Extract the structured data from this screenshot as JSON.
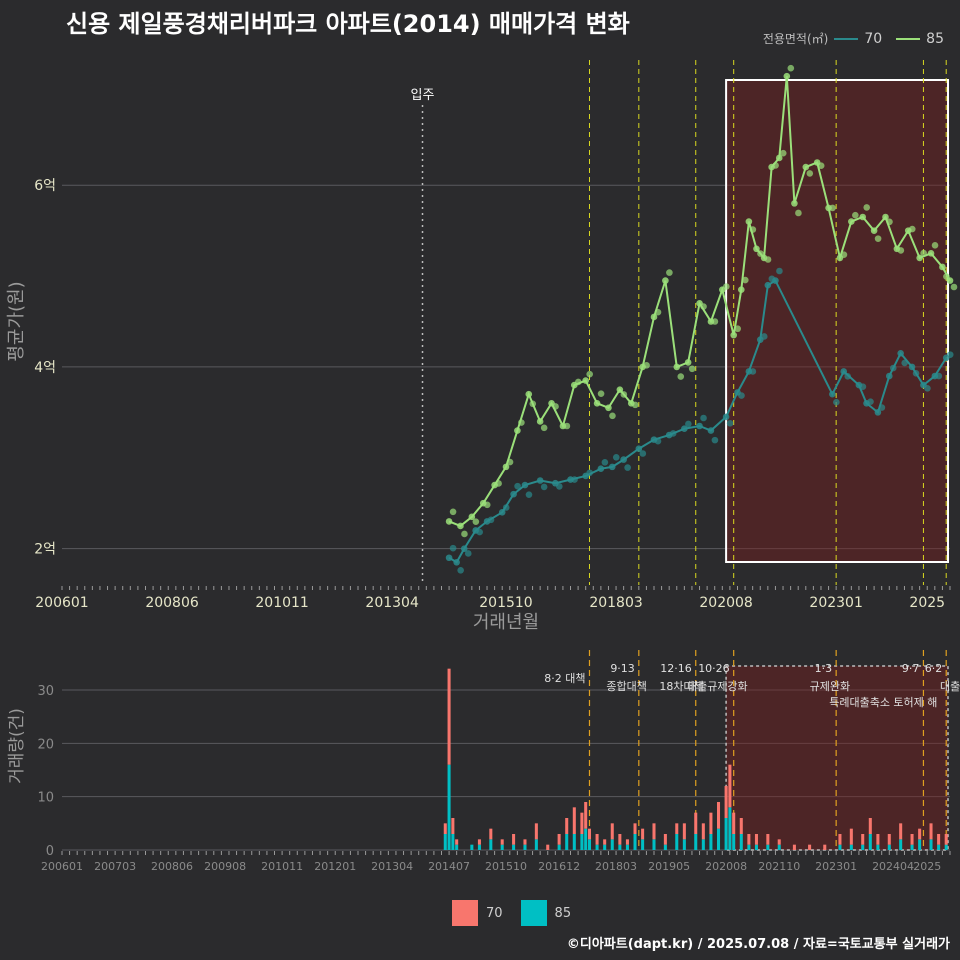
{
  "title": "신용 제일풍경채리버파크 아파트(2014) 매매가격 변화",
  "legend_top": {
    "title": "전용면적(㎡)",
    "items": [
      {
        "label": "70",
        "color": "#2a8a8c"
      },
      {
        "label": "85",
        "color": "#9be07a"
      }
    ]
  },
  "legend_bottom": {
    "items": [
      {
        "label": "70",
        "color": "#f8766d"
      },
      {
        "label": "85",
        "color": "#00bfc4"
      }
    ]
  },
  "footer": "©디아파트(dapt.kr) / 2025.07.08 / 자료=국토교통부 실거래가",
  "chart_data": [
    {
      "type": "line",
      "ylabel": "평균가(원)",
      "xlabel": "거래년월",
      "y_ticks": [
        {
          "value": 2,
          "label": "2억"
        },
        {
          "value": 4,
          "label": "4억"
        },
        {
          "value": 6,
          "label": "6억"
        }
      ],
      "ylim": [
        1.6,
        7.4
      ],
      "x_ticks": [
        "200601",
        "200806",
        "201011",
        "201304",
        "201510",
        "201803",
        "202008",
        "202301",
        "2025"
      ],
      "move_in": {
        "date": "2013-12",
        "label": "입주"
      },
      "policy_lines": [
        "2017-08",
        "2018-09",
        "2019-12",
        "2020-10",
        "2023-01",
        "2024-12",
        "2025-06"
      ],
      "highlight_range": [
        "2020-08",
        "2025-07"
      ],
      "series": [
        {
          "name": "70",
          "color": "#2a8a8c",
          "points": [
            [
              "2014-07",
              1.9
            ],
            [
              "2014-09",
              1.85
            ],
            [
              "2014-11",
              2.0
            ],
            [
              "2015-02",
              2.2
            ],
            [
              "2015-05",
              2.3
            ],
            [
              "2015-09",
              2.4
            ],
            [
              "2015-12",
              2.6
            ],
            [
              "2016-03",
              2.7
            ],
            [
              "2016-07",
              2.75
            ],
            [
              "2016-11",
              2.72
            ],
            [
              "2017-03",
              2.76
            ],
            [
              "2017-07",
              2.8
            ],
            [
              "2017-11",
              2.88
            ],
            [
              "2018-02",
              2.9
            ],
            [
              "2018-05",
              2.98
            ],
            [
              "2018-09",
              3.1
            ],
            [
              "2019-01",
              3.2
            ],
            [
              "2019-05",
              3.25
            ],
            [
              "2019-09",
              3.32
            ],
            [
              "2020-01",
              3.35
            ],
            [
              "2020-04",
              3.3
            ],
            [
              "2020-08",
              3.45
            ],
            [
              "2020-11",
              3.72
            ],
            [
              "2021-02",
              3.95
            ],
            [
              "2021-05",
              4.3
            ],
            [
              "2021-07",
              4.9
            ],
            [
              "2021-09",
              4.95
            ],
            [
              "2022-12",
              3.7
            ],
            [
              "2023-03",
              3.95
            ],
            [
              "2023-07",
              3.8
            ],
            [
              "2023-09",
              3.6
            ],
            [
              "2023-12",
              3.5
            ],
            [
              "2024-03",
              3.9
            ],
            [
              "2024-06",
              4.15
            ],
            [
              "2024-09",
              4.0
            ],
            [
              "2024-12",
              3.8
            ],
            [
              "2025-03",
              3.9
            ],
            [
              "2025-06",
              4.1
            ]
          ]
        },
        {
          "name": "85",
          "color": "#9be07a",
          "points": [
            [
              "2014-07",
              2.3
            ],
            [
              "2014-10",
              2.25
            ],
            [
              "2015-01",
              2.35
            ],
            [
              "2015-04",
              2.5
            ],
            [
              "2015-07",
              2.7
            ],
            [
              "2015-10",
              2.9
            ],
            [
              "2016-01",
              3.3
            ],
            [
              "2016-04",
              3.7
            ],
            [
              "2016-07",
              3.4
            ],
            [
              "2016-10",
              3.6
            ],
            [
              "2017-01",
              3.35
            ],
            [
              "2017-04",
              3.8
            ],
            [
              "2017-07",
              3.85
            ],
            [
              "2017-10",
              3.6
            ],
            [
              "2018-01",
              3.55
            ],
            [
              "2018-04",
              3.75
            ],
            [
              "2018-07",
              3.6
            ],
            [
              "2018-10",
              4.0
            ],
            [
              "2019-01",
              4.55
            ],
            [
              "2019-04",
              4.95
            ],
            [
              "2019-07",
              4.0
            ],
            [
              "2019-10",
              4.05
            ],
            [
              "2020-01",
              4.7
            ],
            [
              "2020-04",
              4.5
            ],
            [
              "2020-07",
              4.85
            ],
            [
              "2020-10",
              4.35
            ],
            [
              "2020-12",
              4.85
            ],
            [
              "2021-02",
              5.6
            ],
            [
              "2021-04",
              5.3
            ],
            [
              "2021-06",
              5.2
            ],
            [
              "2021-08",
              6.2
            ],
            [
              "2021-10",
              6.3
            ],
            [
              "2021-12",
              7.2
            ],
            [
              "2022-02",
              5.8
            ],
            [
              "2022-05",
              6.2
            ],
            [
              "2022-08",
              6.25
            ],
            [
              "2022-11",
              5.75
            ],
            [
              "2023-02",
              5.2
            ],
            [
              "2023-05",
              5.6
            ],
            [
              "2023-08",
              5.65
            ],
            [
              "2023-11",
              5.5
            ],
            [
              "2024-02",
              5.65
            ],
            [
              "2024-05",
              5.3
            ],
            [
              "2024-08",
              5.5
            ],
            [
              "2024-11",
              5.2
            ],
            [
              "2025-02",
              5.25
            ],
            [
              "2025-05",
              5.1
            ],
            [
              "2025-07",
              4.95
            ]
          ]
        }
      ]
    },
    {
      "type": "bar",
      "ylabel": "거래량(건)",
      "y_ticks": [
        0,
        10,
        20,
        30
      ],
      "ylim": [
        0,
        36
      ],
      "x_ticks": [
        "200601",
        "200703",
        "200806",
        "200908",
        "201011",
        "201201",
        "201304",
        "201407",
        "201510",
        "201612",
        "201803",
        "201905",
        "202008",
        "202110",
        "202301",
        "202404",
        "2025"
      ],
      "policy_labels": [
        {
          "date": "2017-08",
          "line1": "8·2 대책",
          "line2": ""
        },
        {
          "date": "2018-09",
          "line1": "9·13",
          "line2": "종합대책"
        },
        {
          "date": "2019-12",
          "line1": "12·16",
          "line2": "18차대책"
        },
        {
          "date": "2020-10",
          "line1": "10·26",
          "line2": "대출규제강화"
        },
        {
          "date": "2023-01",
          "line1": "1·3",
          "line2": "규제완화"
        },
        {
          "date": "2024-12",
          "line1": "9·7",
          "line2": "특례대출축소 토허제 해"
        },
        {
          "date": "2025-06",
          "line1": "6·2",
          "line2": "대출"
        }
      ],
      "series": [
        {
          "name": "70",
          "color": "#f8766d"
        },
        {
          "name": "85",
          "color": "#00bfc4"
        }
      ],
      "bars": [
        [
          "2014-06",
          2,
          3
        ],
        [
          "2014-07",
          18,
          16
        ],
        [
          "2014-08",
          3,
          3
        ],
        [
          "2014-09",
          1,
          1
        ],
        [
          "2015-01",
          0,
          1
        ],
        [
          "2015-03",
          1,
          1
        ],
        [
          "2015-06",
          2,
          2
        ],
        [
          "2015-09",
          1,
          1
        ],
        [
          "2015-12",
          2,
          1
        ],
        [
          "2016-03",
          1,
          1
        ],
        [
          "2016-06",
          3,
          2
        ],
        [
          "2016-09",
          1,
          0
        ],
        [
          "2016-12",
          2,
          1
        ],
        [
          "2017-02",
          3,
          3
        ],
        [
          "2017-04",
          5,
          3
        ],
        [
          "2017-06",
          4,
          3
        ],
        [
          "2017-07",
          5,
          4
        ],
        [
          "2017-08",
          2,
          2
        ],
        [
          "2017-10",
          2,
          1
        ],
        [
          "2017-12",
          1,
          1
        ],
        [
          "2018-02",
          3,
          2
        ],
        [
          "2018-04",
          2,
          1
        ],
        [
          "2018-06",
          1,
          1
        ],
        [
          "2018-08",
          2,
          3
        ],
        [
          "2018-10",
          2,
          2
        ],
        [
          "2019-01",
          3,
          2
        ],
        [
          "2019-04",
          2,
          1
        ],
        [
          "2019-07",
          2,
          3
        ],
        [
          "2019-09",
          3,
          2
        ],
        [
          "2019-12",
          4,
          3
        ],
        [
          "2020-02",
          3,
          2
        ],
        [
          "2020-04",
          4,
          3
        ],
        [
          "2020-06",
          5,
          4
        ],
        [
          "2020-08",
          6,
          6
        ],
        [
          "2020-09",
          8,
          8
        ],
        [
          "2020-10",
          4,
          3
        ],
        [
          "2020-12",
          3,
          3
        ],
        [
          "2021-02",
          2,
          1
        ],
        [
          "2021-04",
          2,
          1
        ],
        [
          "2021-07",
          2,
          1
        ],
        [
          "2021-10",
          1,
          1
        ],
        [
          "2022-02",
          1,
          0
        ],
        [
          "2022-06",
          1,
          0
        ],
        [
          "2022-10",
          1,
          0
        ],
        [
          "2023-02",
          2,
          1
        ],
        [
          "2023-05",
          3,
          1
        ],
        [
          "2023-08",
          2,
          1
        ],
        [
          "2023-10",
          3,
          3
        ],
        [
          "2023-12",
          2,
          1
        ],
        [
          "2024-03",
          2,
          1
        ],
        [
          "2024-06",
          3,
          2
        ],
        [
          "2024-09",
          2,
          1
        ],
        [
          "2024-11",
          2,
          2
        ],
        [
          "2025-02",
          3,
          2
        ],
        [
          "2025-04",
          2,
          1
        ],
        [
          "2025-06",
          2,
          1
        ]
      ]
    }
  ]
}
